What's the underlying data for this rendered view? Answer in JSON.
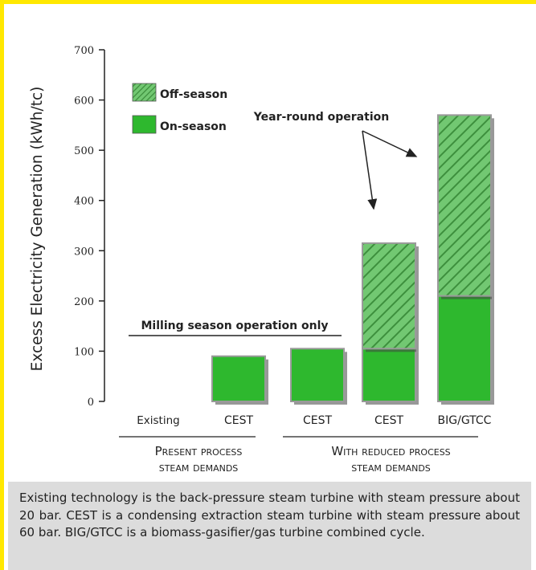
{
  "chart_data": {
    "type": "bar",
    "stacked": true,
    "categories": [
      "Existing",
      "CEST",
      "CEST",
      "CEST",
      "BIG/GTCC"
    ],
    "series": [
      {
        "name": "On-season",
        "values": [
          0,
          90,
          105,
          105,
          210
        ],
        "color": "#2eb82e",
        "pattern": "solid"
      },
      {
        "name": "Off-season",
        "values": [
          0,
          0,
          0,
          210,
          360
        ],
        "color": "#6cc46c",
        "pattern": "diagonal-hatch"
      }
    ],
    "ylabel": "Excess Electricity Generation (kWh/tc)",
    "ylim": [
      0,
      700
    ],
    "yticks": [
      "0",
      "100",
      "200",
      "300",
      "400",
      "500",
      "600",
      "700"
    ],
    "grid": false,
    "legend_position": "top-left",
    "groups": [
      {
        "label_line1": "Present process",
        "label_line2": "steam demands",
        "categories": [
          0,
          1
        ]
      },
      {
        "label_line1": "With reduced process",
        "label_line2": "steam demands",
        "categories": [
          2,
          3,
          4
        ]
      }
    ],
    "annotations": {
      "milling": "Milling season operation only",
      "year_round": "Year-round operation"
    }
  },
  "caption": "Existing technology is the back-pressure steam turbine with steam pressure about 20 bar. CEST is a condensing extraction steam turbine with steam pressure about 60 bar. BIG/GTCC is a biomass-gasifier/gas turbine combined cycle.",
  "colors": {
    "frame": "#ffe800",
    "caption_bg": "#dcdcdc"
  }
}
